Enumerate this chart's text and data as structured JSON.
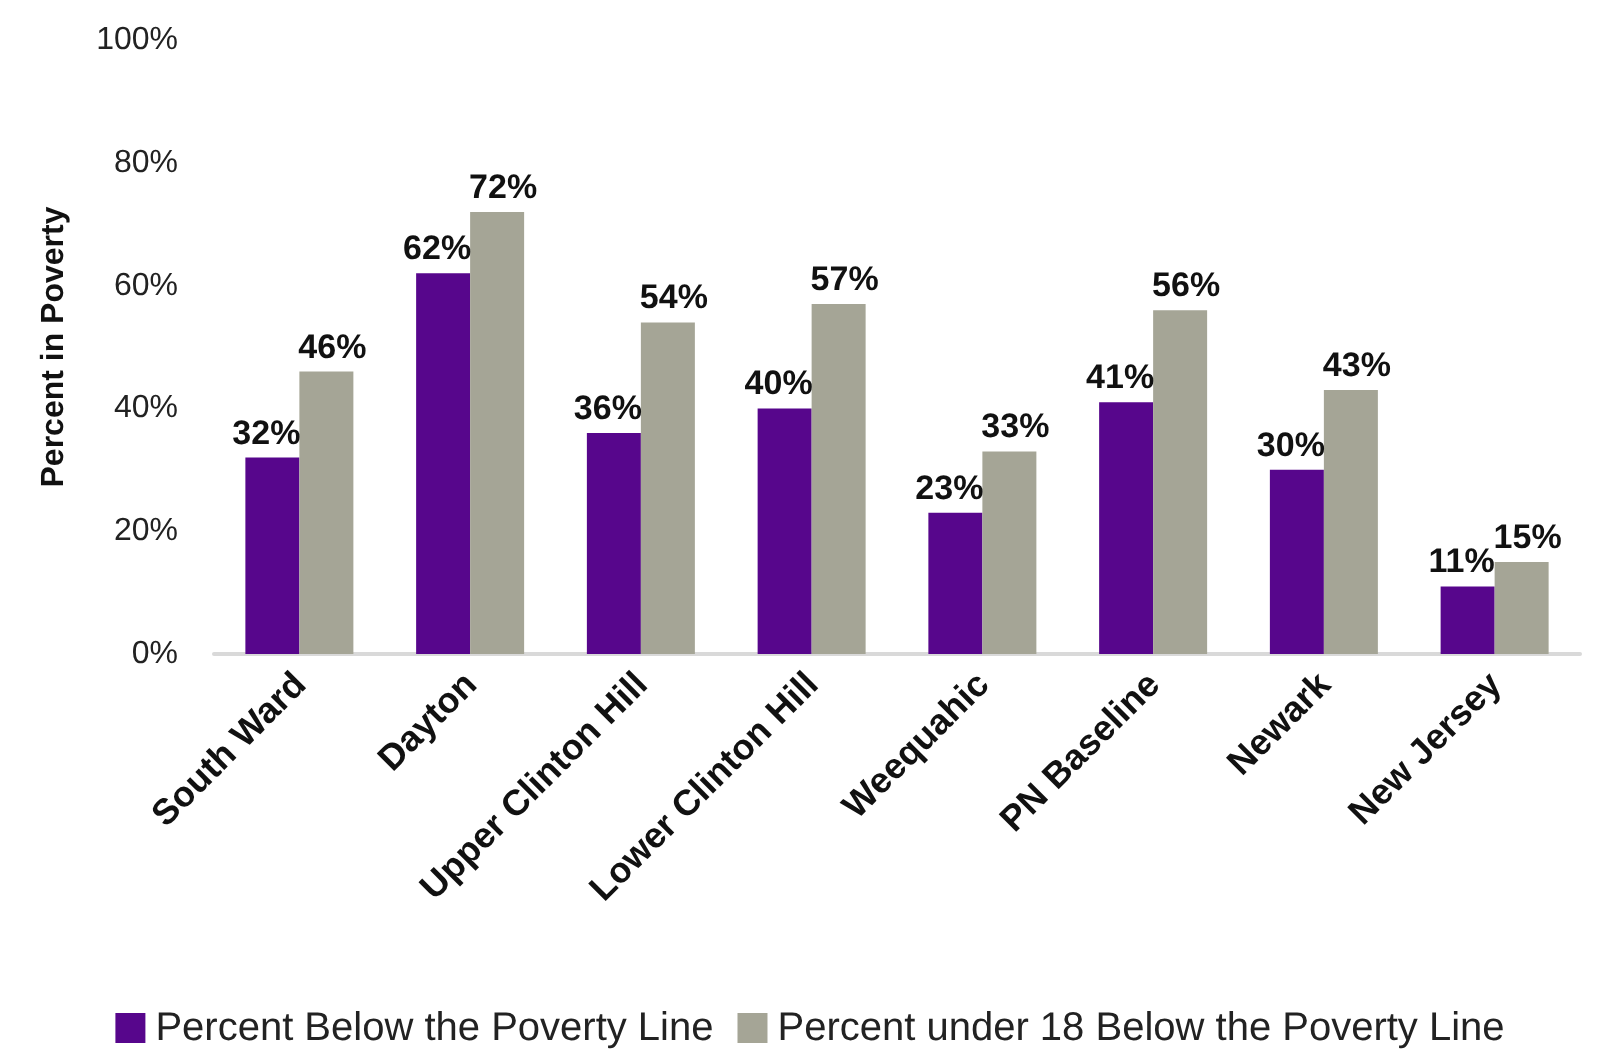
{
  "chart_data": {
    "type": "bar",
    "ylabel": "Percent in Poverty",
    "categories": [
      "South Ward",
      "Dayton",
      "Upper Clinton Hill",
      "Lower Clinton Hill",
      "Weequahic",
      "PN Baseline",
      "Newark",
      "New Jersey"
    ],
    "series": [
      {
        "name": "Percent Below the Poverty Line",
        "color": "#57068c",
        "values": [
          32,
          62,
          36,
          40,
          23,
          41,
          30,
          11
        ],
        "value_labels": [
          "32%",
          "62%",
          "36%",
          "40%",
          "23%",
          "41%",
          "30%",
          "11%"
        ]
      },
      {
        "name": "Percent under 18 Below the Poverty Line",
        "color": "#a5a596",
        "values": [
          46,
          72,
          54,
          57,
          33,
          56,
          43,
          15
        ],
        "value_labels": [
          "46%",
          "72%",
          "54%",
          "57%",
          "33%",
          "56%",
          "43%",
          "15%"
        ]
      }
    ],
    "ylim": [
      0,
      100
    ],
    "yticks": [
      {
        "value": 0,
        "label": "0%"
      },
      {
        "value": 20,
        "label": "20%"
      },
      {
        "value": 40,
        "label": "40%"
      },
      {
        "value": 60,
        "label": "60%"
      },
      {
        "value": 80,
        "label": "80%"
      },
      {
        "value": 100,
        "label": "100%"
      }
    ],
    "grid": false,
    "legend": "bottom"
  }
}
